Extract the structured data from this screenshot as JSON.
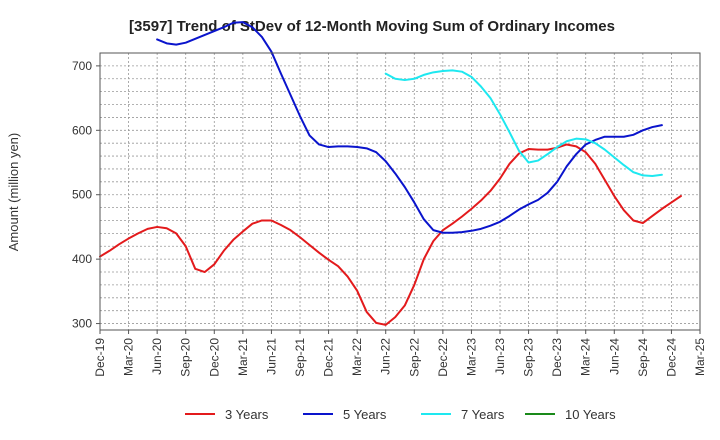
{
  "chart_data": {
    "type": "line",
    "title": "[3597]  Trend of StDev of 12-Month Moving Sum of Ordinary Incomes",
    "xlabel": "",
    "ylabel": "Amount (million yen)",
    "ylim": [
      290,
      720
    ],
    "yticks": [
      300,
      400,
      500,
      600,
      700
    ],
    "x_tick_labels": [
      "Dec-19",
      "Mar-20",
      "Jun-20",
      "Sep-20",
      "Dec-20",
      "Mar-21",
      "Jun-21",
      "Sep-21",
      "Dec-21",
      "Mar-22",
      "Jun-22",
      "Sep-22",
      "Dec-22",
      "Mar-23",
      "Jun-23",
      "Sep-23",
      "Dec-23",
      "Mar-24",
      "Jun-24",
      "Sep-24",
      "Dec-24",
      "Mar-25"
    ],
    "grid": true,
    "legend_position": "bottom",
    "series": [
      {
        "name": "3 Years",
        "color": "#e31a1c",
        "start_month": 0,
        "values": [
          404,
          413,
          423,
          432,
          440,
          447,
          450,
          448,
          440,
          420,
          385,
          380,
          392,
          413,
          430,
          443,
          455,
          460,
          460,
          453,
          445,
          434,
          422,
          410,
          399,
          389,
          373,
          351,
          318,
          301,
          298,
          310,
          328,
          360,
          400,
          428,
          445,
          455,
          466,
          478,
          491,
          506,
          525,
          548,
          564,
          571,
          570,
          570,
          573,
          578,
          575,
          566,
          548,
          523,
          498,
          476,
          460,
          456,
          467,
          478,
          488,
          498
        ]
      },
      {
        "name": "5 Years",
        "color": "#0a14cc",
        "start_month": 6,
        "values": [
          741,
          735,
          733,
          736,
          742,
          748,
          754,
          760,
          767,
          768,
          760,
          745,
          722,
          688,
          655,
          622,
          592,
          578,
          574,
          575,
          575,
          574,
          572,
          566,
          552,
          533,
          512,
          488,
          462,
          445,
          441,
          441,
          442,
          444,
          447,
          452,
          458,
          467,
          477,
          485,
          492,
          503,
          520,
          544,
          563,
          578,
          585,
          590,
          590,
          590,
          593,
          600,
          605,
          608
        ]
      },
      {
        "name": "7 Years",
        "color": "#1ee8f0",
        "start_month": 30,
        "values": [
          688,
          680,
          678,
          680,
          686,
          690,
          692,
          693,
          691,
          683,
          668,
          650,
          625,
          597,
          568,
          550,
          553,
          563,
          574,
          583,
          587,
          586,
          580,
          570,
          558,
          546,
          535,
          530,
          529,
          531
        ]
      },
      {
        "name": "10 Years",
        "color": "#1a8a1a",
        "start_month": 0,
        "values": []
      }
    ]
  }
}
